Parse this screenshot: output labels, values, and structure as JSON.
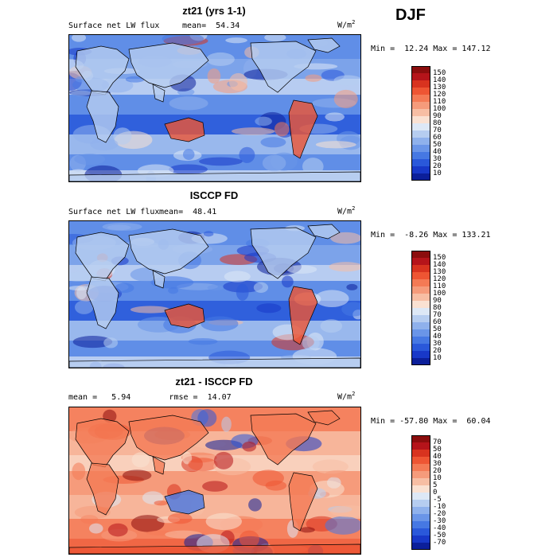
{
  "season": "DJF",
  "units_base": "W/m",
  "units_exp": "2",
  "panels": [
    {
      "title": "zt21 (yrs 1-1)",
      "field": "Surface net LW flux",
      "stat_text": "mean=  54.34",
      "minmax": "Min =  12.24 Max = 147.12",
      "colorbar_labels": [
        "150",
        "140",
        "130",
        "120",
        "110",
        "100",
        "90",
        "80",
        "70",
        "60",
        "50",
        "40",
        "30",
        "20",
        "10"
      ],
      "colorbar_colors": [
        "#8b0d0d",
        "#b5141a",
        "#d8331f",
        "#ee5533",
        "#f47a55",
        "#f59b7b",
        "#f7bea4",
        "#fae1d2",
        "#dde8f6",
        "#b6cdf0",
        "#8fb1ec",
        "#6a95e8",
        "#4678e3",
        "#2a58da",
        "#1838c8",
        "#0c1f9a"
      ],
      "dominant": "cool"
    },
    {
      "title": "ISCCP FD",
      "field": "Surface net LW flux",
      "stat_text": "mean=  48.41",
      "minmax": "Min =  -8.26 Max = 133.21",
      "colorbar_labels": [
        "150",
        "140",
        "130",
        "120",
        "110",
        "100",
        "90",
        "80",
        "70",
        "60",
        "50",
        "40",
        "30",
        "20",
        "10"
      ],
      "colorbar_colors": [
        "#8b0d0d",
        "#b5141a",
        "#d8331f",
        "#ee5533",
        "#f47a55",
        "#f59b7b",
        "#f7bea4",
        "#fae1d2",
        "#dde8f6",
        "#b6cdf0",
        "#8fb1ec",
        "#6a95e8",
        "#4678e3",
        "#2a58da",
        "#1838c8",
        "#0c1f9a"
      ],
      "dominant": "cool"
    },
    {
      "title": "zt21 - ISCCP FD",
      "field": "",
      "stat_text": "mean =   5.94        rmse =  14.07",
      "minmax": "Min = -57.80 Max =  60.04",
      "colorbar_labels": [
        "70",
        "50",
        "40",
        "30",
        "20",
        "10",
        "5",
        "0",
        "-5",
        "-10",
        "-20",
        "-30",
        "-40",
        "-50",
        "-70"
      ],
      "colorbar_colors": [
        "#8b0d0d",
        "#b5141a",
        "#d8331f",
        "#ee5533",
        "#f47a55",
        "#f59b7b",
        "#f7bea4",
        "#fae1d2",
        "#dde8f6",
        "#b6cdf0",
        "#8fb1ec",
        "#6a95e8",
        "#4678e3",
        "#2a58da",
        "#1838c8",
        "#0c1f9a"
      ],
      "dominant": "warm"
    }
  ]
}
